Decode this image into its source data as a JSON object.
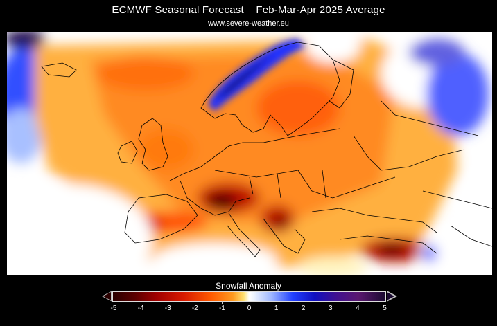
{
  "header": {
    "title": "ECMWF Seasonal Forecast    Feb-Mar-Apr 2025 Average",
    "website": "www.severe-weather.eu"
  },
  "legend": {
    "title": "Snowfall Anomaly",
    "ticks": [
      "-5",
      "-4",
      "-3",
      "-2",
      "-1",
      "0",
      "1",
      "2",
      "3",
      "4",
      "5"
    ],
    "range": [
      -5,
      5
    ],
    "colors": {
      "strong_negative": "#2a0000",
      "negative": "#d81a00",
      "mild_negative": "#ff9a20",
      "neutral": "#ffffff",
      "mild_positive": "#a0b8ff",
      "positive": "#2040ff",
      "strong_positive": "#1a0a30"
    }
  }
}
